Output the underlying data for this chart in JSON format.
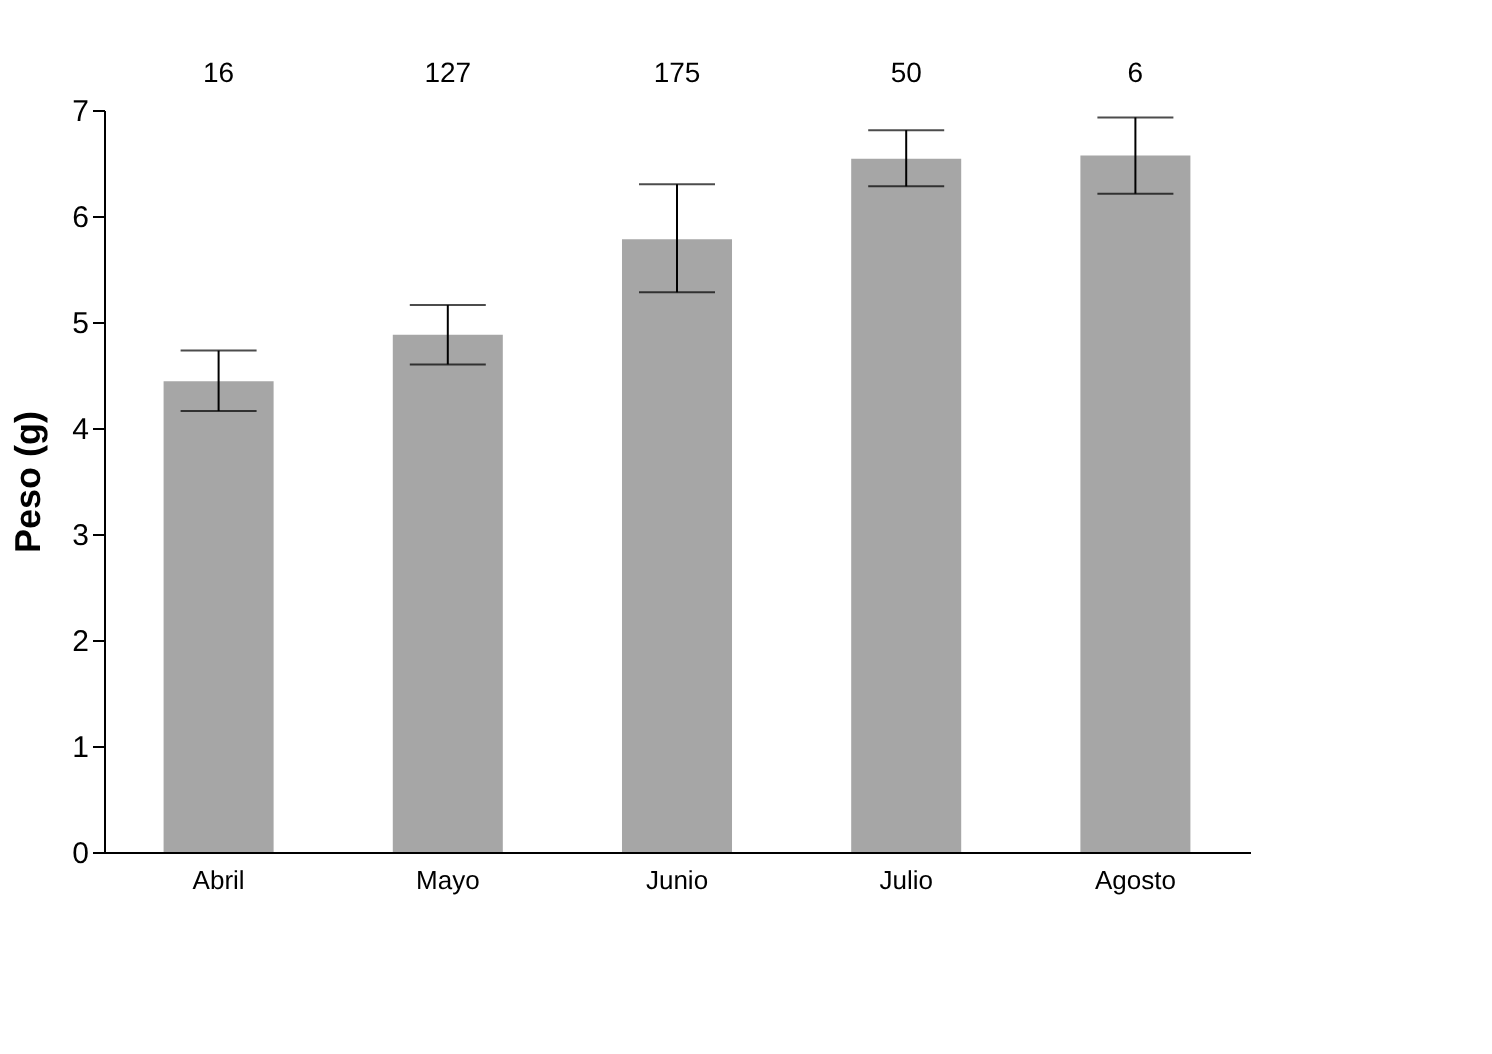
{
  "chart_data": {
    "type": "bar",
    "ylabel": "Peso (g)",
    "categories": [
      "Abril",
      "Mayo",
      "Junio",
      "Julio",
      "Agosto"
    ],
    "values": [
      4.44,
      4.88,
      5.78,
      6.54,
      6.57
    ],
    "errors": [
      [
        4.16,
        4.73
      ],
      [
        4.6,
        5.16
      ],
      [
        5.28,
        6.3
      ],
      [
        6.28,
        6.81
      ],
      [
        6.21,
        6.93
      ]
    ],
    "color": "#a6a6a6",
    "ylim": [
      0,
      7
    ],
    "yticks": [
      0,
      1,
      2,
      3,
      4,
      5,
      6,
      7
    ],
    "grid": false,
    "annotations": [
      "16",
      "127",
      "175",
      "50",
      "6"
    ]
  }
}
